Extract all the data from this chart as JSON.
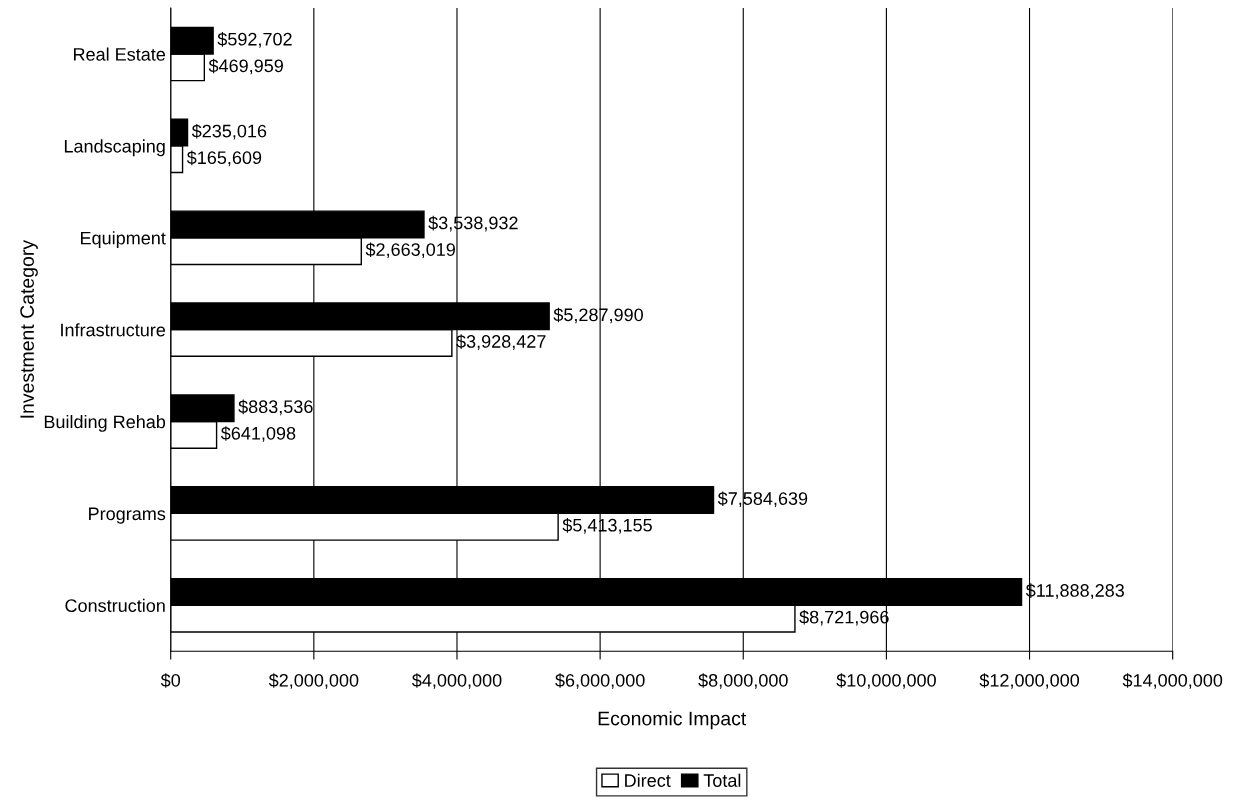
{
  "chart_data": {
    "type": "bar",
    "orientation": "horizontal",
    "xlabel": "Economic Impact",
    "ylabel": "Investment Category",
    "categories": [
      "Real Estate",
      "Landscaping",
      "Equipment",
      "Infrastructure",
      "Building Rehab",
      "Programs",
      "Construction"
    ],
    "series": [
      {
        "name": "Direct",
        "color": "#ffffff",
        "values": [
          469959,
          165609,
          2663019,
          3928427,
          641098,
          5413155,
          8721966
        ],
        "value_labels": [
          "$469,959",
          "$165,609",
          "$2,663,019",
          "$3,928,427",
          "$641,098",
          "$5,413,155",
          "$8,721,966"
        ]
      },
      {
        "name": "Total",
        "color": "#000000",
        "values": [
          592702,
          235016,
          3538932,
          5287990,
          883536,
          7584639,
          11888283
        ],
        "value_labels": [
          "$592,702",
          "$235,016",
          "$3,538,932",
          "$5,287,990",
          "$883,536",
          "$7,584,639",
          "$11,888,283"
        ]
      }
    ],
    "xlim": [
      0,
      14000000
    ],
    "xticks": [
      {
        "value": 0,
        "label": "$0"
      },
      {
        "value": 2000000,
        "label": "$2,000,000"
      },
      {
        "value": 4000000,
        "label": "$4,000,000"
      },
      {
        "value": 6000000,
        "label": "$6,000,000"
      },
      {
        "value": 8000000,
        "label": "$8,000,000"
      },
      {
        "value": 10000000,
        "label": "$10,000,000"
      },
      {
        "value": 12000000,
        "label": "$12,000,000"
      },
      {
        "value": 14000000,
        "label": "$14,000,000"
      }
    ],
    "grid": "x",
    "legend": "bottom"
  }
}
